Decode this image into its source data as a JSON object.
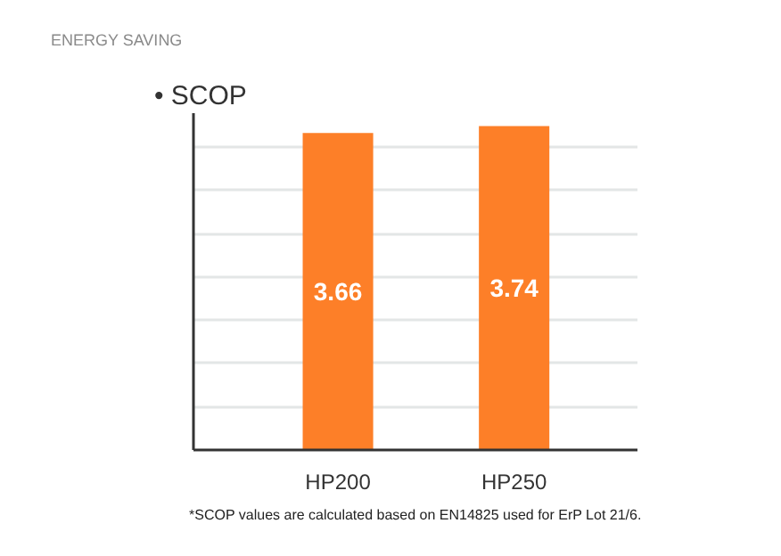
{
  "chart_data": {
    "type": "bar",
    "title": "ENERGY SAVING",
    "subtitle": "• SCOP",
    "categories": [
      "HP200",
      "HP250"
    ],
    "values": [
      3.66,
      3.74
    ],
    "color": "#fd7f28",
    "grid": "y",
    "tick_labels": "x",
    "data_labels": true,
    "annotations": [
      "*SCOP values are calculated based on EN14825 used for ErP Lot 21/6."
    ]
  }
}
